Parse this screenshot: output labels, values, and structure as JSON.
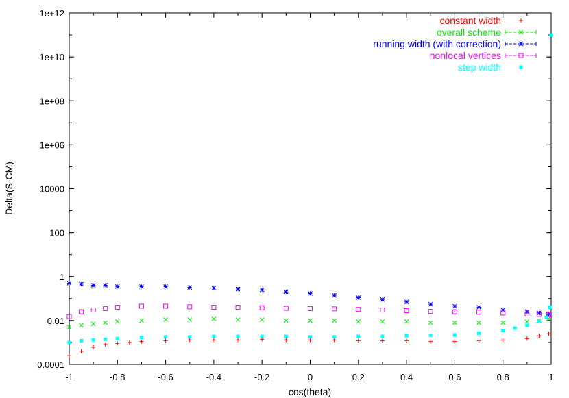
{
  "chart_data": {
    "type": "scatter",
    "xlabel": "cos(theta)",
    "ylabel": "Delta(S-CM)",
    "log_y": true,
    "xlim": [
      -1,
      1
    ],
    "ylim": [
      0.0001,
      1000000000000.0
    ],
    "x_ticks": [
      "-1",
      "-0.8",
      "-0.6",
      "-0.4",
      "-0.2",
      "0",
      "0.2",
      "0.4",
      "0.6",
      "0.8",
      "1"
    ],
    "y_ticks": [
      "0.0001",
      "0.01",
      "1",
      "100",
      "10000",
      "1e+06",
      "1e+08",
      "1e+10",
      "1e+12"
    ],
    "legend_placement": "top-right",
    "grid": false,
    "series": [
      {
        "name": "constant width",
        "color": "#ff0000",
        "marker": "plus",
        "x": [
          -1.0,
          -0.95,
          -0.9,
          -0.85,
          -0.8,
          -0.75,
          -0.7,
          -0.6,
          -0.5,
          -0.4,
          -0.3,
          -0.2,
          -0.1,
          0.0,
          0.1,
          0.2,
          0.3,
          0.4,
          0.5,
          0.6,
          0.7,
          0.8,
          0.9,
          0.95,
          0.99
        ],
        "y": [
          0.00025,
          0.0004,
          0.0006,
          0.0008,
          0.0009,
          0.001,
          0.0011,
          0.0012,
          0.0013,
          0.0013,
          0.0013,
          0.0014,
          0.0013,
          0.0013,
          0.0013,
          0.0012,
          0.0012,
          0.0012,
          0.0011,
          0.0011,
          0.0012,
          0.0013,
          0.0015,
          0.002,
          0.0025
        ]
      },
      {
        "name": "overall scheme",
        "color": "#00ee00",
        "marker": "cross",
        "x": [
          -1.0,
          -0.95,
          -0.9,
          -0.85,
          -0.8,
          -0.7,
          -0.6,
          -0.5,
          -0.4,
          -0.3,
          -0.2,
          -0.1,
          0.0,
          0.1,
          0.2,
          0.3,
          0.4,
          0.5,
          0.6,
          0.7,
          0.8,
          0.9,
          0.95,
          0.99
        ],
        "y": [
          0.005,
          0.006,
          0.007,
          0.008,
          0.009,
          0.01,
          0.011,
          0.011,
          0.012,
          0.011,
          0.011,
          0.01,
          0.01,
          0.01,
          0.009,
          0.009,
          0.009,
          0.008,
          0.008,
          0.008,
          0.008,
          0.009,
          0.01,
          0.012
        ]
      },
      {
        "name": "running width (with correction)",
        "color": "#0000ff",
        "marker": "star",
        "x": [
          -1.0,
          -0.95,
          -0.9,
          -0.85,
          -0.8,
          -0.7,
          -0.6,
          -0.5,
          -0.4,
          -0.3,
          -0.2,
          -0.1,
          0.0,
          0.1,
          0.2,
          0.3,
          0.4,
          0.5,
          0.6,
          0.7,
          0.8,
          0.9,
          0.95,
          0.99
        ],
        "y": [
          0.5,
          0.45,
          0.4,
          0.4,
          0.35,
          0.35,
          0.35,
          0.32,
          0.3,
          0.27,
          0.25,
          0.2,
          0.17,
          0.14,
          0.11,
          0.09,
          0.07,
          0.055,
          0.045,
          0.04,
          0.03,
          0.025,
          0.022,
          0.02
        ]
      },
      {
        "name": "nonlocal vertices",
        "color": "#ff00ff",
        "marker": "square-open",
        "x": [
          -1.0,
          -0.95,
          -0.9,
          -0.85,
          -0.8,
          -0.7,
          -0.6,
          -0.5,
          -0.4,
          -0.3,
          -0.2,
          -0.1,
          0.0,
          0.1,
          0.2,
          0.3,
          0.4,
          0.5,
          0.6,
          0.7,
          0.8,
          0.9,
          0.95,
          0.99
        ],
        "y": [
          0.015,
          0.025,
          0.03,
          0.035,
          0.04,
          0.045,
          0.045,
          0.042,
          0.04,
          0.04,
          0.038,
          0.036,
          0.035,
          0.034,
          0.032,
          0.03,
          0.028,
          0.026,
          0.025,
          0.024,
          0.022,
          0.02,
          0.019,
          0.018
        ]
      },
      {
        "name": "step width",
        "color": "#00ffff",
        "marker": "square-filled",
        "x": [
          -1.0,
          -0.95,
          -0.9,
          -0.85,
          -0.8,
          -0.7,
          -0.6,
          -0.5,
          -0.4,
          -0.3,
          -0.2,
          -0.1,
          0.0,
          0.1,
          0.2,
          0.3,
          0.4,
          0.5,
          0.6,
          0.7,
          0.8,
          0.85,
          0.9,
          0.95,
          0.98,
          0.995,
          1.0
        ],
        "y": [
          0.001,
          0.0012,
          0.0013,
          0.0014,
          0.0015,
          0.0017,
          0.0018,
          0.0018,
          0.0019,
          0.0019,
          0.0019,
          0.0019,
          0.0018,
          0.0018,
          0.0019,
          0.0019,
          0.002,
          0.0021,
          0.0022,
          0.0026,
          0.0035,
          0.0045,
          0.006,
          0.009,
          0.014,
          0.04,
          100000000000.0
        ]
      }
    ]
  }
}
